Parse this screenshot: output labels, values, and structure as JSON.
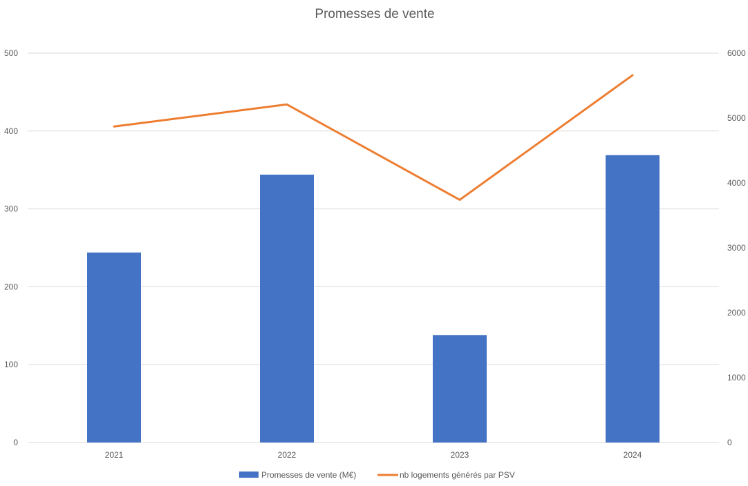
{
  "chart_data": {
    "type": "bar",
    "title": "Promesses de vente",
    "categories": [
      "2021",
      "2022",
      "2023",
      "2024"
    ],
    "series": [
      {
        "name": "Promesses de vente (M€)",
        "type": "bar",
        "axis": "left",
        "color": "#4472C4",
        "values": [
          244,
          344,
          138,
          369
        ]
      },
      {
        "name": "nb logements générés par PSV",
        "type": "line",
        "axis": "right",
        "color": "#ED7D31",
        "values": [
          4870,
          5210,
          3740,
          5660
        ]
      }
    ],
    "y_left": {
      "range": [
        0,
        500
      ],
      "ticks": [
        "0",
        "100",
        "200",
        "300",
        "400",
        "500"
      ]
    },
    "y_right": {
      "range": [
        0,
        6000
      ],
      "ticks": [
        "0",
        "1000",
        "2000",
        "3000",
        "4000",
        "5000",
        "6000"
      ]
    },
    "grid": true,
    "gridline_color": "#D9D9D9",
    "legend_position": "bottom"
  }
}
